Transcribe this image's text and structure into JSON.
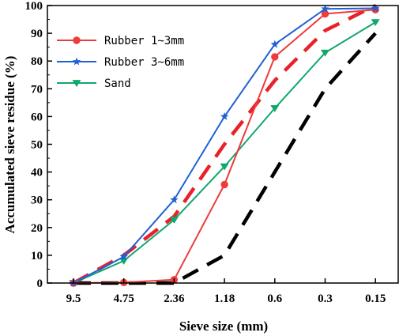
{
  "chart_data": {
    "type": "line",
    "xlabel": "Sieve size (mm)",
    "ylabel": "Accumulated sieve residue (%)",
    "categories": [
      "9.5",
      "4.75",
      "2.36",
      "1.18",
      "0.6",
      "0.3",
      "0.15"
    ],
    "ylim": [
      0,
      100
    ],
    "yticks": [
      0,
      10,
      20,
      30,
      40,
      50,
      60,
      70,
      80,
      90,
      100
    ],
    "legend_position": "top-left",
    "grid": false,
    "series": [
      {
        "name": "Rubber 1~3mm",
        "color": "#ee3b3b",
        "marker": "circle",
        "legend": true,
        "values": [
          0,
          0.2,
          1.2,
          35.5,
          81.5,
          97,
          98.5
        ]
      },
      {
        "name": "Rubber 3~6mm",
        "color": "#1f5fd6",
        "marker": "star",
        "legend": true,
        "values": [
          0,
          9.5,
          30,
          60,
          86,
          98.8,
          99
        ]
      },
      {
        "name": "Sand",
        "color": "#0fa86d",
        "marker": "triangle-down",
        "legend": true,
        "values": [
          0,
          8,
          22.8,
          42,
          63,
          83,
          94
        ]
      },
      {
        "name": "",
        "color": "#e8222a",
        "dash": "dashed",
        "legend": false,
        "values": [
          0,
          10,
          24,
          50,
          73,
          91,
          100
        ]
      },
      {
        "name": "",
        "color": "#000000",
        "dash": "dashed",
        "legend": false,
        "values": [
          0,
          0,
          0,
          10,
          40,
          70,
          90
        ]
      }
    ]
  }
}
